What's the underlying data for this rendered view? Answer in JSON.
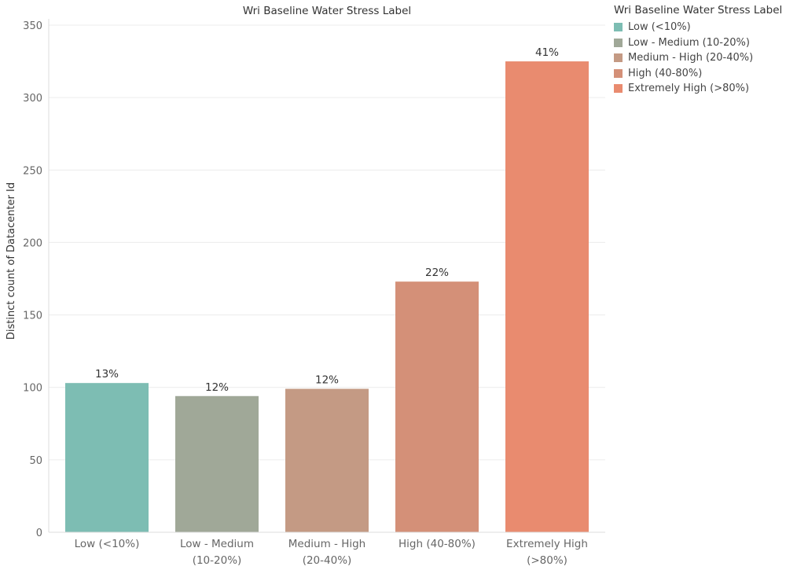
{
  "chart_data": {
    "type": "bar",
    "title": "Wri Baseline Water Stress Label",
    "ylabel": "Distinct count of Datacenter Id",
    "xlabel": "",
    "ylim": [
      0,
      350
    ],
    "yticks": [
      0,
      50,
      100,
      150,
      200,
      250,
      300,
      350
    ],
    "categories": [
      [
        "Low (<10%)"
      ],
      [
        "Low - Medium",
        "(10-20%)"
      ],
      [
        "Medium - High",
        "(20-40%)"
      ],
      [
        "High (40-80%)"
      ],
      [
        "Extremely High",
        "(>80%)"
      ]
    ],
    "values": [
      103,
      94,
      99,
      173,
      325
    ],
    "data_labels": [
      "13%",
      "12%",
      "12%",
      "22%",
      "41%"
    ],
    "colors": [
      "#7dbdb3",
      "#a0a898",
      "#c49a84",
      "#d49078",
      "#e98b6f"
    ],
    "grid": true,
    "legend": {
      "title": "Wri Baseline Water Stress Label",
      "position": "right",
      "entries": [
        "Low (<10%)",
        "Low - Medium (10-20%)",
        "Medium - High (20-40%)",
        "High (40-80%)",
        "Extremely High (>80%)"
      ]
    }
  }
}
